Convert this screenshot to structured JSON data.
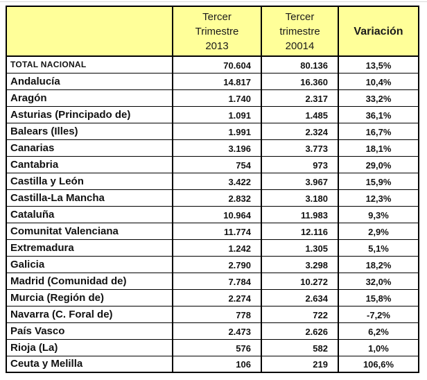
{
  "colors": {
    "header_background": "#FFFF99",
    "border": "#000000",
    "text": "#000000",
    "page_background": "#FFFFFF"
  },
  "table": {
    "header": {
      "region": "",
      "col_2013": {
        "line1": "Tercer",
        "line2": "Trimestre",
        "line3": "2013"
      },
      "col_2014": {
        "line1": "Tercer",
        "line2": "trimestre",
        "line3": "20014"
      },
      "col_variation": "Variación"
    },
    "rows": [
      {
        "label": "TOTAL NACIONAL",
        "q3_2013": "70.604",
        "q3_2014": "80.136",
        "variation": "13,5%"
      },
      {
        "label": "Andalucía",
        "q3_2013": "14.817",
        "q3_2014": "16.360",
        "variation": "10,4%"
      },
      {
        "label": "Aragón",
        "q3_2013": "1.740",
        "q3_2014": "2.317",
        "variation": "33,2%"
      },
      {
        "label": "Asturias (Principado de)",
        "q3_2013": "1.091",
        "q3_2014": "1.485",
        "variation": "36,1%"
      },
      {
        "label": "Balears (Illes)",
        "q3_2013": "1.991",
        "q3_2014": "2.324",
        "variation": "16,7%"
      },
      {
        "label": "Canarias",
        "q3_2013": "3.196",
        "q3_2014": "3.773",
        "variation": "18,1%"
      },
      {
        "label": "Cantabria",
        "q3_2013": "754",
        "q3_2014": "973",
        "variation": "29,0%"
      },
      {
        "label": "Castilla y León",
        "q3_2013": "3.422",
        "q3_2014": "3.967",
        "variation": "15,9%"
      },
      {
        "label": "Castilla-La Mancha",
        "q3_2013": "2.832",
        "q3_2014": "3.180",
        "variation": "12,3%"
      },
      {
        "label": "Cataluña",
        "q3_2013": "10.964",
        "q3_2014": "11.983",
        "variation": "9,3%"
      },
      {
        "label": "Comunitat Valenciana",
        "q3_2013": "11.774",
        "q3_2014": "12.116",
        "variation": "2,9%"
      },
      {
        "label": "Extremadura",
        "q3_2013": "1.242",
        "q3_2014": "1.305",
        "variation": "5,1%"
      },
      {
        "label": "Galicia",
        "q3_2013": "2.790",
        "q3_2014": "3.298",
        "variation": "18,2%"
      },
      {
        "label": "Madrid (Comunidad de)",
        "q3_2013": "7.784",
        "q3_2014": "10.272",
        "variation": "32,0%"
      },
      {
        "label": "Murcia (Región de)",
        "q3_2013": "2.274",
        "q3_2014": "2.634",
        "variation": "15,8%"
      },
      {
        "label": "Navarra (C. Foral de)",
        "q3_2013": "778",
        "q3_2014": "722",
        "variation": "-7,2%"
      },
      {
        "label": "País Vasco",
        "q3_2013": "2.473",
        "q3_2014": "2.626",
        "variation": "6,2%"
      },
      {
        "label": "Rioja (La)",
        "q3_2013": "576",
        "q3_2014": "582",
        "variation": "1,0%"
      },
      {
        "label": "Ceuta y Melilla",
        "q3_2013": "106",
        "q3_2014": "219",
        "variation": "106,6%"
      }
    ]
  },
  "chart_data": {
    "type": "table",
    "title": "",
    "columns": [
      "",
      "Tercer Trimestre 2013",
      "Tercer trimestre 20014",
      "Variación"
    ],
    "categories": [
      "TOTAL NACIONAL",
      "Andalucía",
      "Aragón",
      "Asturias (Principado de)",
      "Balears (Illes)",
      "Canarias",
      "Cantabria",
      "Castilla y León",
      "Castilla-La Mancha",
      "Cataluña",
      "Comunitat Valenciana",
      "Extremadura",
      "Galicia",
      "Madrid (Comunidad de)",
      "Murcia (Región de)",
      "Navarra (C. Foral de)",
      "País Vasco",
      "Rioja (La)",
      "Ceuta y Melilla"
    ],
    "series": [
      {
        "name": "Tercer Trimestre 2013",
        "values": [
          70604,
          14817,
          1740,
          1091,
          1991,
          3196,
          754,
          3422,
          2832,
          10964,
          11774,
          1242,
          2790,
          7784,
          2274,
          778,
          2473,
          576,
          106
        ]
      },
      {
        "name": "Tercer trimestre 20014",
        "values": [
          80136,
          16360,
          2317,
          1485,
          2324,
          3773,
          973,
          3967,
          3180,
          11983,
          12116,
          1305,
          3298,
          10272,
          2634,
          722,
          2626,
          582,
          219
        ]
      },
      {
        "name": "Variación (%)",
        "values": [
          13.5,
          10.4,
          33.2,
          36.1,
          16.7,
          18.1,
          29.0,
          15.9,
          12.3,
          9.3,
          2.9,
          5.1,
          18.2,
          32.0,
          15.8,
          -7.2,
          6.2,
          1.0,
          106.6
        ]
      }
    ]
  }
}
